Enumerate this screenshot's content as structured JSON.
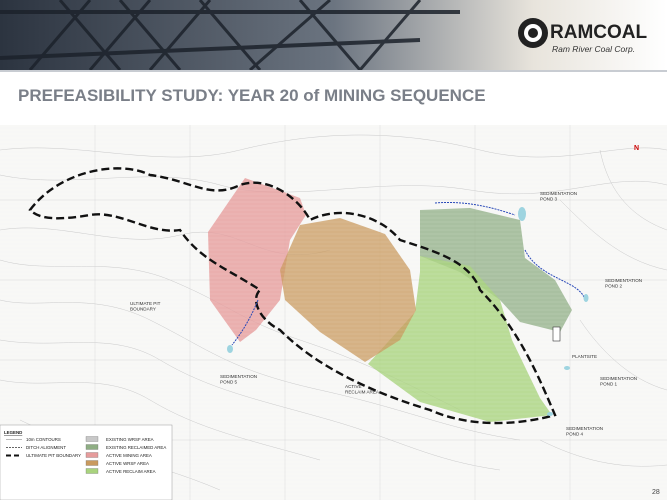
{
  "header": {
    "logo": "RAMCOAL",
    "company": "Ram River Coal Corp."
  },
  "title": "PREFEASIBILITY STUDY:  YEAR 20 of MINING SEQUENCE",
  "map": {
    "labels": [
      {
        "lines": [
          "SEDIMENTATION",
          "POND 3"
        ]
      },
      {
        "lines": [
          "SEDIMENTATION",
          "POND 2"
        ]
      },
      {
        "lines": [
          "PLANTSITE"
        ]
      },
      {
        "lines": [
          "SEDIMENTATION",
          "POND 1"
        ]
      },
      {
        "lines": [
          "SEDIMENTATION",
          "POND 4"
        ]
      },
      {
        "lines": [
          "SEDIMENTATION",
          "POND 5"
        ]
      },
      {
        "lines": [
          "ULTIMATE PIT",
          "BOUNDARY"
        ]
      },
      {
        "lines": [
          "ACTIVE",
          "RECLAIM AREA"
        ]
      }
    ]
  },
  "legend": {
    "title": "LEGEND",
    "items": [
      "10m CONTOURS",
      "DITCH ALIGNMENT",
      "ULTIMATE PIT BOUNDARY",
      "EXISTING WRSF AREA",
      "EXISTING RECLAIMED AREA",
      "ACTIVE MINING AREA",
      "ACTIVE WRSF AREA",
      "ACTIVE RECLAIM AREA"
    ]
  },
  "page_number": "28"
}
